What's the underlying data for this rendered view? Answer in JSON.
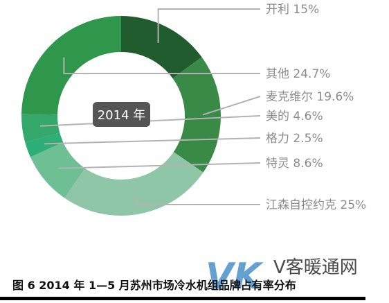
{
  "chart_data": {
    "type": "pie",
    "variant": "donut",
    "center_label": "2014 年",
    "slices": [
      {
        "name": "开利",
        "value": 15,
        "label": "开利 15%",
        "color": "#215c2e"
      },
      {
        "name": "麦克维尔",
        "value": 19.6,
        "label": "麦克维尔 19.6%",
        "color": "#3a8a47"
      },
      {
        "name": "江森自控约克",
        "value": 25,
        "label": "江森自控约克 25%",
        "color": "#8fc6a8"
      },
      {
        "name": "特灵",
        "value": 8.6,
        "label": "特灵 8.6%",
        "color": "#6fbf94"
      },
      {
        "name": "格力",
        "value": 2.5,
        "label": "格力 2.5%",
        "color": "#2daf77"
      },
      {
        "name": "美的",
        "value": 4.6,
        "label": "美的 4.6%",
        "color": "#34a86a"
      },
      {
        "name": "其他",
        "value": 24.7,
        "label": "其他 24.7%",
        "color": "#2f974c"
      }
    ]
  },
  "caption": "图 6 2014 年 1—5 月苏州市场冷水机组品牌占有率分布",
  "watermark": {
    "mark": "VK",
    "text": "V客暖通网"
  }
}
